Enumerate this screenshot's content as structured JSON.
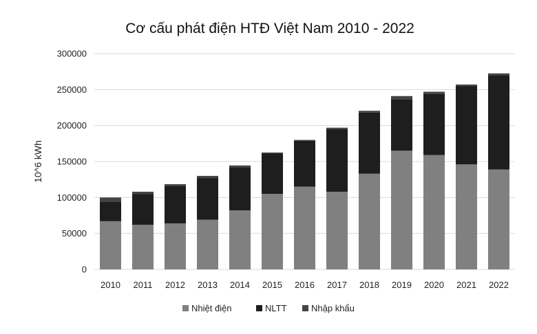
{
  "chart_data": {
    "type": "bar",
    "stacked": true,
    "title": "Cơ cấu phát điện HTĐ Việt Nam 2010 - 2022",
    "xlabel": "",
    "ylabel": "10^6 kWh",
    "ylim": [
      0,
      300000
    ],
    "yticks": [
      "0",
      "50000",
      "100000",
      "150000",
      "200000",
      "250000",
      "300000"
    ],
    "grid": true,
    "legend_position": "bottom",
    "categories": [
      "2010",
      "2011",
      "2012",
      "2013",
      "2014",
      "2015",
      "2016",
      "2017",
      "2018",
      "2019",
      "2020",
      "2021",
      "2022"
    ],
    "series": [
      {
        "name": "Nhiệt điện",
        "color": "#808080",
        "values": [
          67000,
          62000,
          64000,
          69000,
          82000,
          105000,
          115000,
          108000,
          133000,
          165000,
          159000,
          146000,
          139000
        ]
      },
      {
        "name": "NLTT",
        "color": "#1e1e1e",
        "values": [
          27000,
          43000,
          52000,
          58000,
          60000,
          56000,
          64000,
          87000,
          85000,
          71000,
          85000,
          109000,
          131000
        ]
      },
      {
        "name": "Nhập khẩu",
        "color": "#444444",
        "values": [
          6000,
          3000,
          2500,
          3000,
          2500,
          1500,
          1000,
          2000,
          2500,
          5000,
          3000,
          2000,
          2500
        ]
      }
    ]
  }
}
